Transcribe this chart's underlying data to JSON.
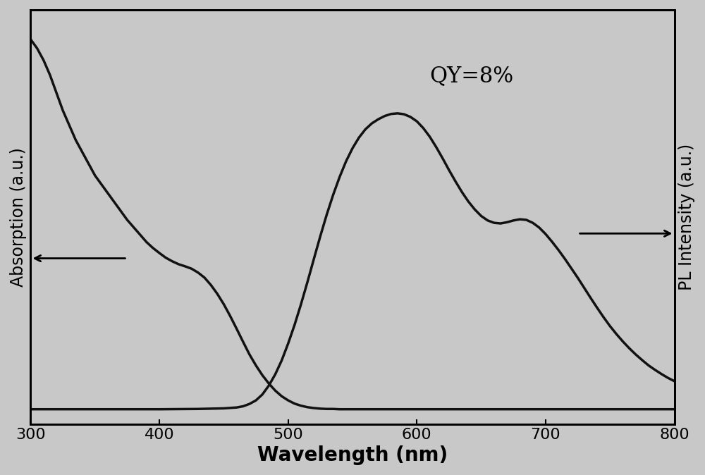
{
  "background_color": "#c8c8c8",
  "plot_bg_color": "#c8c8c8",
  "xlabel": "Wavelength (nm)",
  "ylabel_left": "Absorption (a.u.)",
  "ylabel_right": "PL Intensity (a.u.)",
  "annotation_text": "QY=8%",
  "xlim": [
    300,
    800
  ],
  "line_color": "#111111",
  "line_width": 2.5,
  "xlabel_fontsize": 20,
  "ylabel_fontsize": 17,
  "tick_fontsize": 16,
  "annotation_fontsize": 22,
  "absorption_x": [
    300,
    305,
    310,
    315,
    320,
    325,
    330,
    335,
    340,
    345,
    350,
    355,
    360,
    365,
    370,
    375,
    380,
    385,
    390,
    395,
    400,
    405,
    410,
    415,
    420,
    425,
    430,
    435,
    440,
    445,
    450,
    455,
    460,
    465,
    470,
    475,
    480,
    485,
    490,
    495,
    500,
    505,
    510,
    515,
    520,
    525,
    530,
    535,
    540,
    545,
    550,
    600,
    650,
    700,
    750,
    800
  ],
  "absorption_y": [
    1.25,
    1.22,
    1.18,
    1.13,
    1.07,
    1.01,
    0.96,
    0.91,
    0.87,
    0.83,
    0.79,
    0.76,
    0.73,
    0.7,
    0.67,
    0.64,
    0.615,
    0.59,
    0.565,
    0.545,
    0.528,
    0.512,
    0.5,
    0.49,
    0.483,
    0.475,
    0.462,
    0.445,
    0.42,
    0.39,
    0.355,
    0.315,
    0.272,
    0.228,
    0.185,
    0.148,
    0.115,
    0.087,
    0.063,
    0.044,
    0.03,
    0.019,
    0.012,
    0.007,
    0.004,
    0.002,
    0.001,
    0.001,
    0.0,
    0.0,
    0.0,
    0.0,
    0.0,
    0.0,
    0.0,
    0.0
  ],
  "pl_x": [
    300,
    400,
    430,
    450,
    460,
    465,
    470,
    475,
    480,
    485,
    490,
    495,
    500,
    505,
    510,
    515,
    520,
    525,
    530,
    535,
    540,
    545,
    550,
    555,
    560,
    565,
    570,
    575,
    580,
    585,
    590,
    595,
    600,
    605,
    610,
    615,
    620,
    625,
    630,
    635,
    640,
    645,
    650,
    655,
    660,
    665,
    670,
    675,
    680,
    685,
    690,
    695,
    700,
    705,
    710,
    715,
    720,
    725,
    730,
    735,
    740,
    745,
    750,
    755,
    760,
    765,
    770,
    775,
    780,
    785,
    790,
    795,
    800
  ],
  "pl_y": [
    0.0,
    0.0,
    0.001,
    0.003,
    0.006,
    0.01,
    0.018,
    0.03,
    0.05,
    0.08,
    0.118,
    0.165,
    0.222,
    0.285,
    0.355,
    0.43,
    0.508,
    0.585,
    0.658,
    0.725,
    0.785,
    0.838,
    0.882,
    0.918,
    0.946,
    0.966,
    0.98,
    0.991,
    0.998,
    1.0,
    0.997,
    0.988,
    0.973,
    0.95,
    0.921,
    0.886,
    0.848,
    0.808,
    0.77,
    0.734,
    0.702,
    0.675,
    0.653,
    0.638,
    0.63,
    0.628,
    0.632,
    0.638,
    0.642,
    0.64,
    0.63,
    0.614,
    0.592,
    0.566,
    0.538,
    0.508,
    0.476,
    0.444,
    0.41,
    0.376,
    0.343,
    0.311,
    0.281,
    0.254,
    0.229,
    0.206,
    0.185,
    0.166,
    0.148,
    0.133,
    0.119,
    0.106,
    0.095
  ]
}
